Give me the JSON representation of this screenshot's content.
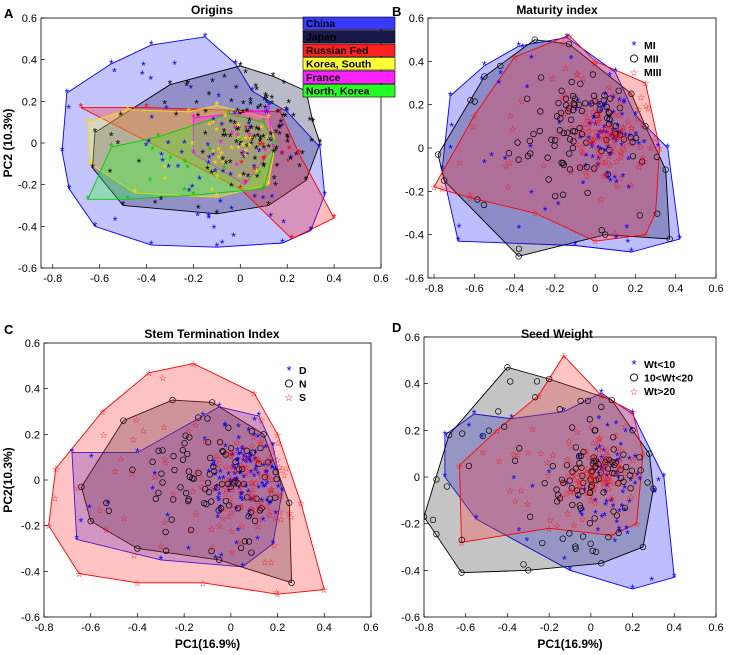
{
  "figure": {
    "shared_ylabel": "PC2 (10.3%)",
    "shared_ylabel_alt": "PC2(10.3%)",
    "shared_xlabel": "PC1(16.9%)",
    "symbols": {
      "star": "*",
      "circle": "o",
      "pentagram": "☆"
    }
  },
  "chart_data": [
    {
      "type": "scatter",
      "panel_letter": "A",
      "title": "Origins",
      "xlabel": "",
      "ylabel": "PC2 (10.3%)",
      "xlim": [
        -0.85,
        0.6
      ],
      "ylim": [
        -0.6,
        0.6
      ],
      "xticks": [
        "-0.8",
        "-0.6",
        "-0.4",
        "-0.2",
        "0",
        "0.2",
        "0.4",
        "0.6"
      ],
      "yticks": [
        "-0.6",
        "-0.4",
        "-0.2",
        "0",
        "0.2",
        "0.4",
        "0.6"
      ],
      "legend_position": "top-right",
      "legend_style": "boxes",
      "series": [
        {
          "name": "China",
          "color": "#0000ff",
          "fill": "#3a3aff",
          "marker": "star",
          "hull": [
            [
              -0.76,
              -0.04
            ],
            [
              -0.74,
              0.24
            ],
            [
              -0.55,
              0.38
            ],
            [
              -0.38,
              0.47
            ],
            [
              -0.15,
              0.51
            ],
            [
              -0.02,
              0.38
            ],
            [
              0.05,
              0.25
            ],
            [
              0.2,
              0.15
            ],
            [
              0.34,
              -0.02
            ],
            [
              0.36,
              -0.25
            ],
            [
              0.3,
              -0.42
            ],
            [
              0.18,
              -0.48
            ],
            [
              -0.1,
              -0.5
            ],
            [
              -0.38,
              -0.49
            ],
            [
              -0.62,
              -0.4
            ],
            [
              -0.73,
              -0.22
            ]
          ],
          "center": [
            -0.1,
            0.0
          ],
          "spread": [
            0.2,
            0.2
          ],
          "n": 60
        },
        {
          "name": "Japan",
          "color": "#000000",
          "fill": "#1a1a4a",
          "marker": "star",
          "hull": [
            [
              -0.63,
              -0.12
            ],
            [
              -0.62,
              0.05
            ],
            [
              -0.3,
              0.28
            ],
            [
              0.0,
              0.37
            ],
            [
              0.14,
              0.32
            ],
            [
              0.28,
              0.25
            ],
            [
              0.31,
              0.1
            ],
            [
              0.34,
              0.0
            ],
            [
              0.28,
              -0.18
            ],
            [
              0.12,
              -0.3
            ],
            [
              -0.1,
              -0.34
            ],
            [
              -0.5,
              -0.3
            ]
          ],
          "center": [
            0.05,
            0.05
          ],
          "spread": [
            0.1,
            0.12
          ],
          "n": 110
        },
        {
          "name": "Russian Fed",
          "color": "#ff0000",
          "fill": "#ff2020",
          "marker": "star",
          "hull": [
            [
              -0.68,
              0.17
            ],
            [
              -0.4,
              0.17
            ],
            [
              0.17,
              0.15
            ],
            [
              0.25,
              -0.05
            ],
            [
              0.4,
              -0.36
            ],
            [
              0.22,
              -0.46
            ],
            [
              0.0,
              -0.22
            ]
          ],
          "center": [
            0.1,
            -0.1
          ],
          "spread": [
            0.1,
            0.1
          ],
          "n": 12
        },
        {
          "name": "Korea, South",
          "color": "#ffdd00",
          "fill": "#ffff33",
          "marker": "star",
          "hull": [
            [
              -0.65,
              0.1
            ],
            [
              -0.48,
              0.16
            ],
            [
              -0.22,
              0.15
            ],
            [
              -0.1,
              0.18
            ],
            [
              0.12,
              0.12
            ],
            [
              0.15,
              0.0
            ],
            [
              0.12,
              -0.2
            ],
            [
              -0.1,
              -0.26
            ],
            [
              -0.45,
              -0.24
            ],
            [
              -0.64,
              -0.1
            ]
          ],
          "center": [
            -0.05,
            0.0
          ],
          "spread": [
            0.08,
            0.08
          ],
          "n": 30
        },
        {
          "name": "France",
          "color": "#ff00ff",
          "fill": "#ff22ff",
          "marker": "star",
          "hull": [
            [
              -0.2,
              0.12
            ],
            [
              0.12,
              0.16
            ],
            [
              0.14,
              -0.02
            ],
            [
              0.02,
              -0.2
            ],
            [
              -0.2,
              -0.05
            ]
          ],
          "center": [
            0.0,
            0.0
          ],
          "spread": [
            0.05,
            0.05
          ],
          "n": 8
        },
        {
          "name": "North, Korea",
          "color": "#00cc00",
          "fill": "#22ff22",
          "marker": "star",
          "hull": [
            [
              -0.55,
              -0.02
            ],
            [
              -0.35,
              0.03
            ],
            [
              -0.05,
              0.14
            ],
            [
              0.1,
              0.1
            ],
            [
              0.15,
              0.0
            ],
            [
              0.1,
              -0.22
            ],
            [
              -0.2,
              -0.25
            ],
            [
              -0.48,
              -0.27
            ],
            [
              -0.65,
              -0.27
            ]
          ],
          "center": [
            -0.2,
            -0.1
          ],
          "spread": [
            0.1,
            0.05
          ],
          "n": 10
        }
      ]
    },
    {
      "type": "scatter",
      "panel_letter": "B",
      "title": "Maturity index",
      "xlabel": "",
      "ylabel": "",
      "xlim": [
        -0.83,
        0.6
      ],
      "ylim": [
        -0.6,
        0.6
      ],
      "xticks": [
        "-0.8",
        "-0.6",
        "-0.4",
        "-0.2",
        "0",
        "0.2",
        "0.4",
        "0.6"
      ],
      "yticks": [
        "-0.6",
        "-0.4",
        "-0.2",
        "0",
        "0.2",
        "0.4",
        "0.6"
      ],
      "legend_position": "top-right",
      "legend_style": "markers",
      "series": [
        {
          "name": "MI",
          "color": "#0000ff",
          "fill": "#2828ff",
          "marker": "star",
          "hull": [
            [
              -0.72,
              0.24
            ],
            [
              -0.55,
              0.38
            ],
            [
              -0.38,
              0.47
            ],
            [
              -0.14,
              0.51
            ],
            [
              0.1,
              0.35
            ],
            [
              0.2,
              0.15
            ],
            [
              0.36,
              0.0
            ],
            [
              0.42,
              -0.42
            ],
            [
              0.18,
              -0.48
            ],
            [
              -0.1,
              -0.45
            ],
            [
              -0.68,
              -0.43
            ],
            [
              -0.76,
              -0.1
            ]
          ],
          "center": [
            0.05,
            0.05
          ],
          "spread": [
            0.08,
            0.12
          ],
          "n": 90
        },
        {
          "name": "MII",
          "color": "#000000",
          "fill": "#1a1a4a",
          "marker": "circle",
          "hull": [
            [
              -0.78,
              -0.03
            ],
            [
              -0.55,
              0.33
            ],
            [
              -0.3,
              0.5
            ],
            [
              -0.13,
              0.48
            ],
            [
              0.18,
              0.25
            ],
            [
              0.25,
              0.1
            ],
            [
              0.35,
              -0.1
            ],
            [
              0.37,
              -0.42
            ],
            [
              0.05,
              -0.4
            ],
            [
              -0.38,
              -0.5
            ],
            [
              -0.75,
              -0.15
            ]
          ],
          "center": [
            -0.05,
            0.05
          ],
          "spread": [
            0.15,
            0.12
          ],
          "n": 100
        },
        {
          "name": "MIII",
          "color": "#ff0000",
          "fill": "#ff3030",
          "marker": "pentagram",
          "hull": [
            [
              -0.8,
              -0.18
            ],
            [
              -0.6,
              0.15
            ],
            [
              -0.4,
              0.42
            ],
            [
              -0.13,
              0.52
            ],
            [
              0.0,
              0.4
            ],
            [
              0.25,
              0.3
            ],
            [
              0.32,
              0.0
            ],
            [
              0.3,
              -0.3
            ],
            [
              0.25,
              -0.4
            ],
            [
              0.0,
              -0.43
            ],
            [
              -0.3,
              -0.3
            ],
            [
              -0.62,
              -0.23
            ]
          ],
          "center": [
            0.05,
            0.05
          ],
          "spread": [
            0.1,
            0.1
          ],
          "n": 140
        }
      ]
    },
    {
      "type": "scatter",
      "panel_letter": "C",
      "title": "Stem Termination Index",
      "xlabel": "PC1(16.9%)",
      "ylabel": "PC2(10.3%)",
      "xlim": [
        -0.8,
        0.6
      ],
      "ylim": [
        -0.6,
        0.6
      ],
      "xticks": [
        "-0.8",
        "-0.6",
        "-0.4",
        "-0.2",
        "0",
        "0.2",
        "0.4",
        "0.6"
      ],
      "yticks": [
        "-0.6",
        "-0.4",
        "-0.2",
        "0",
        "0.2",
        "0.4",
        "0.6"
      ],
      "legend_position": "top-right",
      "legend_style": "markers",
      "series": [
        {
          "name": "D",
          "color": "#0000ff",
          "fill": "#2a2aff",
          "marker": "star",
          "hull": [
            [
              -0.68,
              0.12
            ],
            [
              -0.4,
              0.12
            ],
            [
              -0.12,
              0.28
            ],
            [
              -0.05,
              0.32
            ],
            [
              0.12,
              0.28
            ],
            [
              0.18,
              0.15
            ],
            [
              0.22,
              -0.05
            ],
            [
              0.18,
              -0.28
            ],
            [
              0.05,
              -0.38
            ],
            [
              -0.3,
              -0.35
            ],
            [
              -0.66,
              -0.26
            ]
          ],
          "center": [
            0.05,
            0.0
          ],
          "spread": [
            0.08,
            0.1
          ],
          "n": 110
        },
        {
          "name": "N",
          "color": "#000000",
          "fill": "#1a1a4a",
          "marker": "circle",
          "hull": [
            [
              -0.64,
              -0.03
            ],
            [
              -0.46,
              0.26
            ],
            [
              -0.25,
              0.35
            ],
            [
              -0.08,
              0.34
            ],
            [
              0.14,
              0.2
            ],
            [
              0.25,
              -0.1
            ],
            [
              0.26,
              -0.45
            ],
            [
              -0.05,
              -0.35
            ],
            [
              -0.4,
              -0.3
            ],
            [
              -0.6,
              -0.18
            ]
          ],
          "center": [
            -0.05,
            0.0
          ],
          "spread": [
            0.15,
            0.12
          ],
          "n": 90
        },
        {
          "name": "S",
          "color": "#ff0000",
          "fill": "#ff3838",
          "marker": "pentagram",
          "hull": [
            [
              -0.75,
              0.05
            ],
            [
              -0.55,
              0.3
            ],
            [
              -0.35,
              0.47
            ],
            [
              -0.16,
              0.51
            ],
            [
              0.1,
              0.38
            ],
            [
              0.2,
              0.2
            ],
            [
              0.3,
              -0.1
            ],
            [
              0.4,
              -0.48
            ],
            [
              0.2,
              -0.5
            ],
            [
              -0.12,
              -0.45
            ],
            [
              -0.4,
              -0.45
            ],
            [
              -0.65,
              -0.41
            ],
            [
              -0.78,
              -0.2
            ]
          ],
          "center": [
            0.05,
            0.0
          ],
          "spread": [
            0.1,
            0.1
          ],
          "n": 140
        }
      ]
    },
    {
      "type": "scatter",
      "panel_letter": "D",
      "title": "Seed Weight",
      "xlabel": "PC1(16.9%)",
      "ylabel": "",
      "xlim": [
        -0.8,
        0.6
      ],
      "ylim": [
        -0.6,
        0.6
      ],
      "xticks": [
        "-0.8",
        "-0.6",
        "-0.4",
        "-0.2",
        "0",
        "0.2",
        "0.4",
        "0.6"
      ],
      "yticks": [
        "-0.6",
        "-0.4",
        "-0.2",
        "0",
        "0.2",
        "0.4",
        "0.6"
      ],
      "legend_position": "top-right",
      "legend_style": "markers",
      "series": [
        {
          "name": "Wt<10",
          "color": "#0000ff",
          "fill": "#2828ff",
          "marker": "star",
          "hull": [
            [
              -0.7,
              0.18
            ],
            [
              -0.56,
              0.27
            ],
            [
              -0.38,
              0.25
            ],
            [
              -0.13,
              0.28
            ],
            [
              0.05,
              0.36
            ],
            [
              0.2,
              0.27
            ],
            [
              0.35,
              0.0
            ],
            [
              0.4,
              -0.43
            ],
            [
              0.2,
              -0.48
            ],
            [
              -0.1,
              -0.4
            ],
            [
              -0.55,
              -0.18
            ],
            [
              -0.7,
              0.0
            ]
          ],
          "center": [
            0.1,
            -0.05
          ],
          "spread": [
            0.1,
            0.15
          ],
          "n": 70
        },
        {
          "name": "10<Wt<20",
          "color": "#000000",
          "fill": "#3a3a3a",
          "marker": "circle",
          "hull": [
            [
              -0.8,
              -0.17
            ],
            [
              -0.68,
              0.18
            ],
            [
              -0.4,
              0.47
            ],
            [
              -0.2,
              0.42
            ],
            [
              0.1,
              0.33
            ],
            [
              0.2,
              0.2
            ],
            [
              0.28,
              0.1
            ],
            [
              0.3,
              -0.05
            ],
            [
              0.25,
              -0.3
            ],
            [
              0.05,
              -0.37
            ],
            [
              -0.3,
              -0.4
            ],
            [
              -0.62,
              -0.41
            ]
          ],
          "center": [
            0.0,
            0.0
          ],
          "spread": [
            0.12,
            0.12
          ],
          "n": 110
        },
        {
          "name": "Wt>20",
          "color": "#ff0000",
          "fill": "#ff4040",
          "marker": "pentagram",
          "hull": [
            [
              -0.63,
              0.05
            ],
            [
              -0.45,
              0.2
            ],
            [
              -0.25,
              0.35
            ],
            [
              -0.13,
              0.52
            ],
            [
              0.05,
              0.35
            ],
            [
              0.2,
              0.28
            ],
            [
              0.25,
              0.1
            ],
            [
              0.22,
              -0.2
            ],
            [
              0.1,
              -0.25
            ],
            [
              -0.2,
              -0.22
            ],
            [
              -0.62,
              -0.28
            ]
          ],
          "center": [
            0.0,
            0.0
          ],
          "spread": [
            0.08,
            0.08
          ],
          "n": 120
        }
      ]
    }
  ]
}
